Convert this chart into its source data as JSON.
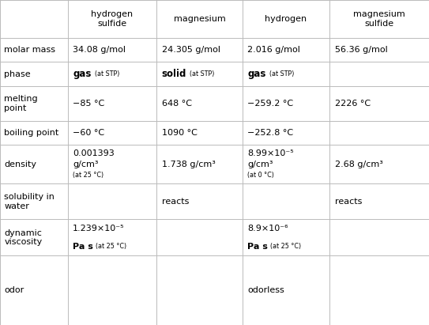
{
  "col_headers": [
    "hydrogen\nsulfide",
    "magnesium",
    "hydrogen",
    "magnesium\nsulfide"
  ],
  "row_headers": [
    "molar mass",
    "phase",
    "melting\npoint",
    "boiling point",
    "density",
    "solubility in\nwater",
    "dynamic\nviscosity",
    "odor"
  ],
  "bg_color": "#ffffff",
  "grid_color": "#bbbbbb",
  "text_color": "#000000",
  "fs_main": 8.0,
  "fs_small": 5.8,
  "col_bounds": [
    0.0,
    0.158,
    0.365,
    0.565,
    0.768,
    1.0
  ],
  "row_bounds": [
    1.0,
    0.882,
    0.81,
    0.735,
    0.628,
    0.555,
    0.435,
    0.325,
    0.213,
    0.0
  ]
}
